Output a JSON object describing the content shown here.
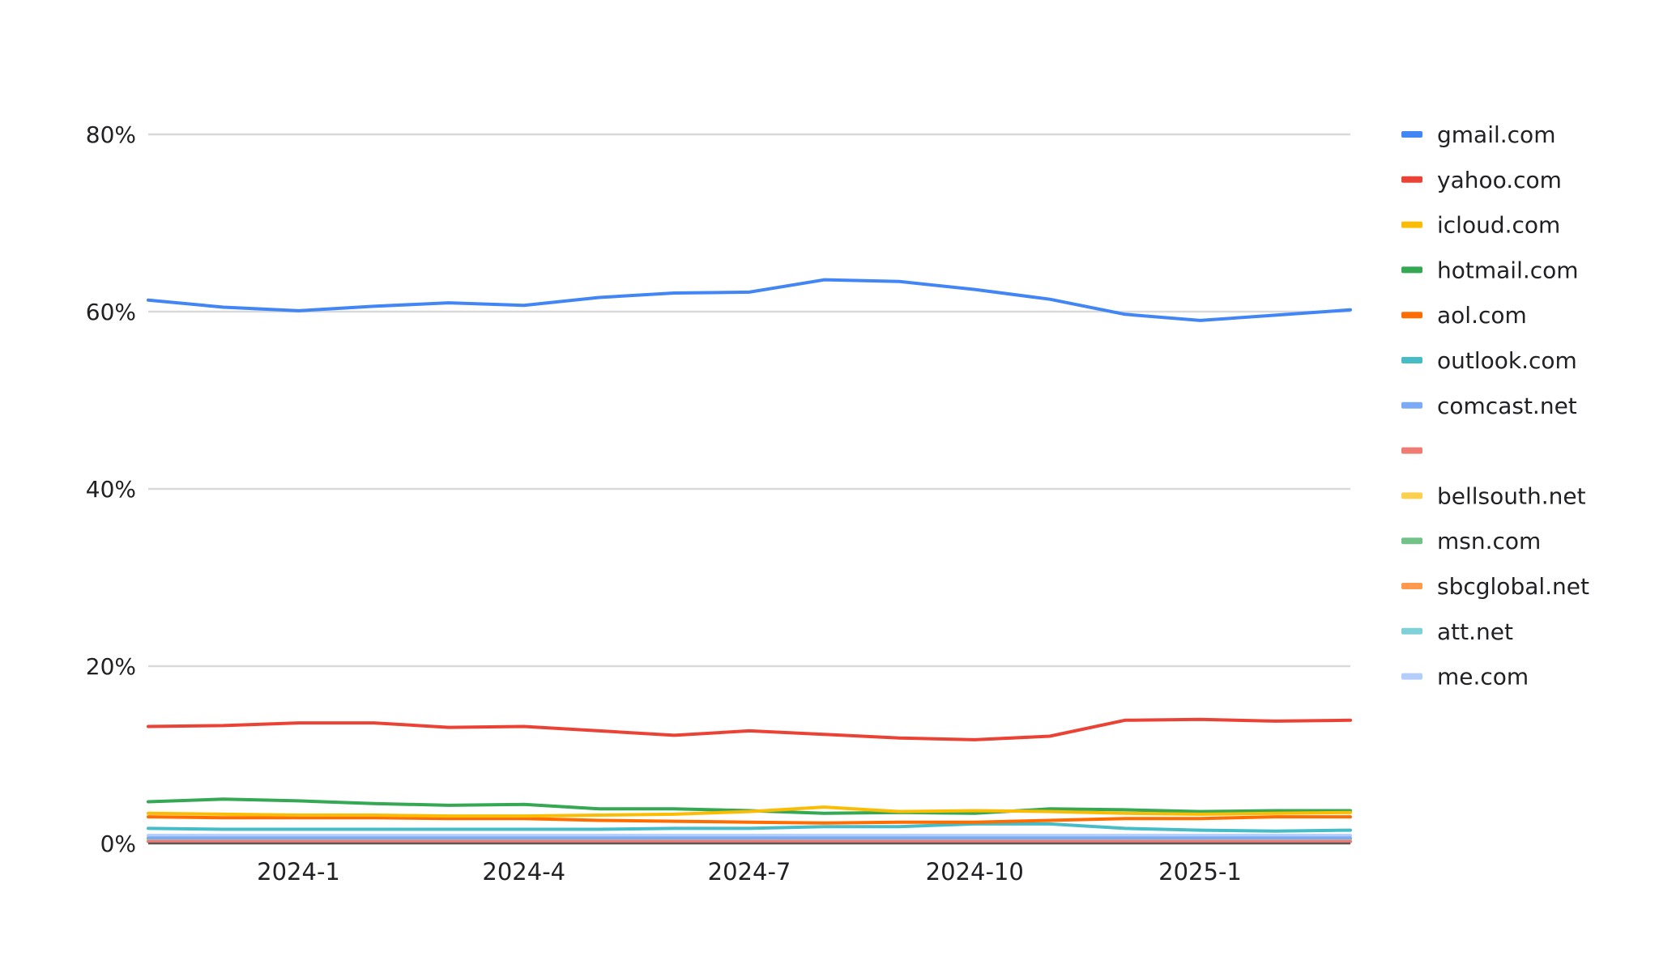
{
  "chart_data": {
    "type": "line",
    "title": "",
    "xlabel": "",
    "ylabel": "",
    "ylim": [
      0,
      80
    ],
    "y_ticks": [
      {
        "value": 0,
        "label": "0%"
      },
      {
        "value": 20,
        "label": "20%"
      },
      {
        "value": 40,
        "label": "40%"
      },
      {
        "value": 60,
        "label": "60%"
      },
      {
        "value": 80,
        "label": "80%"
      }
    ],
    "x_ticks": [
      {
        "index": 2,
        "label": "2024-1"
      },
      {
        "index": 5,
        "label": "2024-4"
      },
      {
        "index": 8,
        "label": "2024-7"
      },
      {
        "index": 11,
        "label": "2024-10"
      },
      {
        "index": 14,
        "label": "2025-1"
      }
    ],
    "x": [
      "2023-11",
      "2023-12",
      "2024-1",
      "2024-2",
      "2024-3",
      "2024-4",
      "2024-5",
      "2024-6",
      "2024-7",
      "2024-8",
      "2024-9",
      "2024-10",
      "2024-11",
      "2024-12",
      "2025-1",
      "2025-2",
      "2025-3"
    ],
    "grid": true,
    "legend_position": "right",
    "series": [
      {
        "name": "gmail.com",
        "color": "#4285f4",
        "values": [
          61.3,
          60.5,
          60.1,
          60.6,
          61.0,
          60.7,
          61.6,
          62.1,
          62.2,
          63.6,
          63.4,
          62.5,
          61.4,
          59.7,
          59.0,
          59.6,
          60.2
        ]
      },
      {
        "name": "yahoo.com",
        "color": "#ea4335",
        "values": [
          13.2,
          13.3,
          13.6,
          13.6,
          13.1,
          13.2,
          12.7,
          12.2,
          12.7,
          12.3,
          11.9,
          11.7,
          12.1,
          13.9,
          14.0,
          13.8,
          13.9
        ]
      },
      {
        "name": "icloud.com",
        "color": "#fbbc04",
        "values": [
          3.4,
          3.3,
          3.2,
          3.2,
          3.1,
          3.1,
          3.2,
          3.3,
          3.6,
          4.1,
          3.6,
          3.7,
          3.6,
          3.4,
          3.3,
          3.4,
          3.5
        ]
      },
      {
        "name": "hotmail.com",
        "color": "#34a853",
        "values": [
          4.7,
          5.0,
          4.8,
          4.5,
          4.3,
          4.4,
          3.9,
          3.9,
          3.7,
          3.4,
          3.5,
          3.4,
          3.9,
          3.8,
          3.6,
          3.7,
          3.7
        ]
      },
      {
        "name": "aol.com",
        "color": "#ff6d01",
        "values": [
          3.0,
          2.9,
          2.9,
          2.9,
          2.8,
          2.8,
          2.6,
          2.5,
          2.4,
          2.3,
          2.4,
          2.4,
          2.6,
          2.8,
          2.8,
          3.0,
          3.0
        ]
      },
      {
        "name": "outlook.com",
        "color": "#46bdc6",
        "values": [
          1.7,
          1.6,
          1.6,
          1.6,
          1.6,
          1.6,
          1.6,
          1.7,
          1.7,
          1.9,
          1.9,
          2.2,
          2.2,
          1.7,
          1.5,
          1.4,
          1.5
        ]
      },
      {
        "name": "comcast.net",
        "color": "#7baaf7",
        "values": [
          0.6,
          0.6,
          0.6,
          0.6,
          0.6,
          0.6,
          0.6,
          0.6,
          0.6,
          0.6,
          0.6,
          0.6,
          0.6,
          0.6,
          0.6,
          0.6,
          0.6
        ]
      },
      {
        "name": "",
        "color": "#f07b72",
        "values": [
          0.2,
          0.2,
          0.2,
          0.2,
          0.2,
          0.2,
          0.2,
          0.2,
          0.2,
          0.2,
          0.2,
          0.2,
          0.2,
          0.2,
          0.2,
          0.2,
          0.2
        ]
      },
      {
        "name": "bellsouth.net",
        "color": "#fcd04f",
        "values": [
          0.3,
          0.3,
          0.3,
          0.3,
          0.3,
          0.3,
          0.3,
          0.3,
          0.3,
          0.3,
          0.3,
          0.3,
          0.3,
          0.3,
          0.3,
          0.3,
          0.3
        ]
      },
      {
        "name": "msn.com",
        "color": "#71c287",
        "values": [
          0.3,
          0.3,
          0.3,
          0.3,
          0.3,
          0.3,
          0.3,
          0.3,
          0.3,
          0.3,
          0.3,
          0.3,
          0.3,
          0.3,
          0.3,
          0.3,
          0.3
        ]
      },
      {
        "name": "sbcglobal.net",
        "color": "#ff994d",
        "values": [
          0.3,
          0.3,
          0.3,
          0.3,
          0.3,
          0.3,
          0.3,
          0.3,
          0.3,
          0.3,
          0.3,
          0.3,
          0.3,
          0.3,
          0.3,
          0.3,
          0.3
        ]
      },
      {
        "name": "att.net",
        "color": "#7ed1d7",
        "values": [
          0.5,
          0.5,
          0.5,
          0.5,
          0.5,
          0.5,
          0.5,
          0.5,
          0.5,
          0.5,
          0.5,
          0.5,
          0.5,
          0.5,
          0.5,
          0.5,
          0.5
        ]
      },
      {
        "name": "me.com",
        "color": "#b3cefb",
        "values": [
          0.9,
          0.9,
          0.9,
          0.9,
          0.9,
          0.9,
          0.9,
          0.9,
          0.9,
          0.9,
          0.9,
          0.9,
          0.9,
          0.9,
          0.9,
          0.9,
          0.9
        ]
      }
    ]
  }
}
